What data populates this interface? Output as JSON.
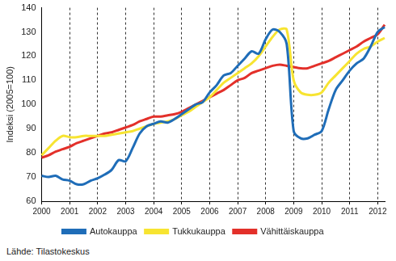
{
  "chart_data": {
    "type": "line",
    "y_label": "Indeksi (2005=100)",
    "source": "Lähde: Tilastokeskus",
    "categories": [
      "2000",
      null,
      null,
      null,
      "2001",
      null,
      null,
      null,
      "2002",
      null,
      null,
      null,
      "2003",
      null,
      null,
      null,
      "2004",
      null,
      null,
      null,
      "2005",
      null,
      null,
      null,
      "2006",
      null,
      null,
      null,
      "2007",
      null,
      null,
      null,
      "2008",
      null,
      null,
      null,
      "2009",
      null,
      null,
      null,
      "2010",
      null,
      null,
      null,
      "2011",
      null,
      null,
      null,
      "2012",
      null
    ],
    "series": [
      {
        "name": "Autokauppa",
        "color": "#1f6db8",
        "values": [
          70.5,
          70,
          70.5,
          69,
          68.5,
          67,
          67,
          68.5,
          69.5,
          71,
          73,
          77,
          76.5,
          82,
          88,
          91,
          92,
          93,
          92.5,
          94,
          96,
          98,
          100,
          101,
          105,
          108,
          112,
          113,
          116,
          119,
          122,
          121,
          127,
          131,
          130,
          125,
          89,
          86,
          86,
          87.5,
          89,
          98,
          106,
          110,
          114,
          117,
          119,
          124,
          130,
          132
        ]
      },
      {
        "name": "Tukkukauppa",
        "color": "#f7e431",
        "values": [
          79,
          82,
          85,
          87,
          86.5,
          86.5,
          87,
          87,
          87,
          87,
          87.5,
          88,
          88.5,
          89,
          90,
          91,
          92,
          92.5,
          93,
          94,
          95.5,
          97,
          99,
          101,
          103,
          106,
          109,
          111,
          113,
          115,
          117,
          120,
          124,
          128,
          131,
          131,
          110,
          105,
          104,
          104,
          105,
          109,
          112,
          115,
          118,
          121,
          123,
          124,
          126,
          127.5
        ]
      },
      {
        "name": "Vähittäiskauppa",
        "color": "#e3302a",
        "values": [
          78,
          79,
          80.5,
          81.5,
          82.5,
          84,
          85,
          86,
          87,
          88,
          88.5,
          89.5,
          90.5,
          91.5,
          93,
          94,
          95,
          95,
          95.5,
          96,
          97,
          98.5,
          100,
          101.5,
          103,
          104.5,
          106,
          108,
          110,
          111,
          113,
          114,
          115,
          116,
          116.5,
          116,
          115.5,
          115,
          115,
          116,
          117,
          118,
          119.5,
          121,
          122.5,
          124,
          126,
          127.5,
          129,
          133
        ]
      }
    ],
    "ylim": [
      60,
      140
    ],
    "yticks": [
      60,
      70,
      80,
      90,
      100,
      110,
      120,
      130,
      140
    ],
    "grid": true,
    "legend": "bottom"
  }
}
